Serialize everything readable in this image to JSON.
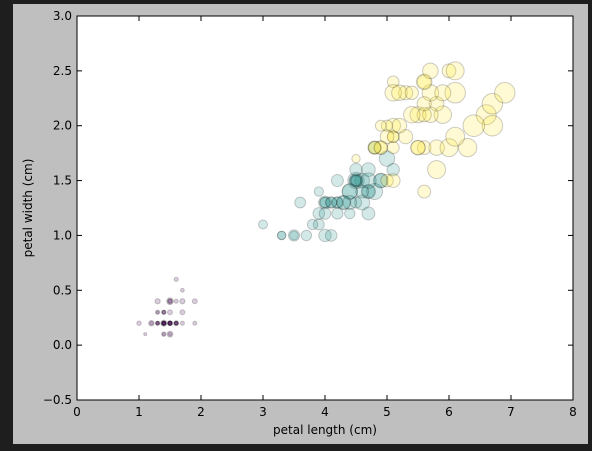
{
  "chart_data": {
    "type": "scatter",
    "title": "",
    "xlabel": "petal length (cm)",
    "ylabel": "petal width (cm)",
    "xlim": [
      0,
      8
    ],
    "ylim": [
      -0.5,
      3.0
    ],
    "x_ticks": [
      "0",
      "1",
      "2",
      "3",
      "4",
      "5",
      "6",
      "7",
      "8"
    ],
    "y_ticks": [
      "−0.5",
      "0.0",
      "0.5",
      "1.0",
      "1.5",
      "2.0",
      "2.5",
      "3.0"
    ],
    "grid": false,
    "legend": "none",
    "marker_alpha": 0.2,
    "colors": {
      "setosa": "#440154",
      "versicolor": "#21918c",
      "virginica": "#fde725",
      "edge": "#000000",
      "axes_bg": "#ffffff",
      "figure_bg": "#bfbfbf"
    },
    "size_encoding": "sepal width (cm)",
    "series": [
      {
        "color": "#440154",
        "x": [
          1.4,
          1.4,
          1.3,
          1.5,
          1.4,
          1.7,
          1.4,
          1.5,
          1.4,
          1.5,
          1.5,
          1.6,
          1.4,
          1.1,
          1.2,
          1.5,
          1.3,
          1.4,
          1.7,
          1.5,
          1.7,
          1.5,
          1.0,
          1.7,
          1.9,
          1.6,
          1.6,
          1.5,
          1.4,
          1.6,
          1.6,
          1.5,
          1.5,
          1.4,
          1.5,
          1.2,
          1.3,
          1.4,
          1.3,
          1.5,
          1.3,
          1.3,
          1.3,
          1.6,
          1.9,
          1.4,
          1.6,
          1.4,
          1.5,
          1.4
        ],
        "y": [
          0.2,
          0.2,
          0.2,
          0.2,
          0.2,
          0.4,
          0.3,
          0.2,
          0.2,
          0.1,
          0.2,
          0.2,
          0.1,
          0.1,
          0.2,
          0.4,
          0.4,
          0.3,
          0.3,
          0.3,
          0.2,
          0.4,
          0.2,
          0.5,
          0.2,
          0.2,
          0.4,
          0.2,
          0.2,
          0.2,
          0.2,
          0.4,
          0.1,
          0.2,
          0.2,
          0.2,
          0.2,
          0.1,
          0.2,
          0.2,
          0.3,
          0.3,
          0.2,
          0.6,
          0.4,
          0.3,
          0.2,
          0.2,
          0.2,
          0.2
        ],
        "size": [
          3.5,
          3.0,
          3.2,
          3.1,
          3.6,
          3.9,
          3.4,
          3.4,
          2.9,
          3.1,
          3.7,
          3.4,
          3.0,
          3.0,
          4.0,
          4.4,
          3.9,
          3.5,
          3.8,
          3.8,
          3.4,
          3.7,
          3.6,
          3.3,
          3.4,
          3.0,
          3.4,
          3.5,
          3.4,
          3.2,
          3.1,
          3.4,
          4.1,
          4.2,
          3.1,
          3.2,
          3.5,
          3.6,
          3.0,
          3.4,
          3.5,
          2.3,
          3.2,
          3.5,
          3.8,
          3.0,
          3.8,
          3.2,
          3.7,
          3.3
        ]
      },
      {
        "color": "#21918c",
        "x": [
          4.7,
          4.5,
          4.9,
          4.0,
          4.6,
          4.5,
          4.7,
          3.3,
          4.6,
          3.9,
          3.5,
          4.2,
          4.0,
          4.7,
          3.6,
          4.4,
          4.5,
          4.1,
          4.5,
          3.9,
          4.8,
          4.0,
          4.9,
          4.7,
          4.3,
          4.4,
          4.8,
          5.0,
          4.5,
          3.5,
          3.8,
          3.7,
          3.9,
          5.1,
          4.5,
          4.5,
          4.7,
          4.4,
          4.1,
          4.0,
          4.4,
          4.6,
          4.0,
          3.3,
          4.2,
          4.2,
          4.2,
          4.3,
          3.0,
          4.1
        ],
        "y": [
          1.4,
          1.5,
          1.5,
          1.3,
          1.5,
          1.3,
          1.6,
          1.0,
          1.3,
          1.4,
          1.0,
          1.5,
          1.0,
          1.4,
          1.3,
          1.4,
          1.5,
          1.0,
          1.5,
          1.1,
          1.8,
          1.3,
          1.5,
          1.2,
          1.3,
          1.4,
          1.4,
          1.7,
          1.5,
          1.0,
          1.1,
          1.0,
          1.2,
          1.6,
          1.5,
          1.6,
          1.5,
          1.3,
          1.3,
          1.3,
          1.2,
          1.4,
          1.2,
          1.0,
          1.3,
          1.2,
          1.3,
          1.3,
          1.1,
          1.3
        ],
        "size": [
          6.4,
          6.9,
          6.5,
          5.5,
          6.5,
          5.7,
          6.3,
          4.9,
          6.6,
          5.2,
          5.0,
          5.9,
          6.0,
          6.1,
          5.6,
          6.7,
          5.6,
          5.8,
          6.2,
          5.6,
          5.9,
          6.1,
          6.3,
          6.1,
          6.4,
          6.6,
          6.8,
          6.7,
          6.0,
          5.7,
          5.5,
          5.5,
          5.8,
          6.0,
          5.4,
          6.0,
          6.7,
          6.3,
          5.6,
          5.5,
          5.5,
          6.1,
          5.8,
          5.0,
          5.6,
          5.7,
          5.7,
          6.2,
          5.1,
          5.7
        ]
      },
      {
        "color": "#fde725",
        "x": [
          6.0,
          5.1,
          5.9,
          5.6,
          5.8,
          6.6,
          4.5,
          6.3,
          5.8,
          6.1,
          5.1,
          5.3,
          5.5,
          5.0,
          5.1,
          5.3,
          5.5,
          6.7,
          6.9,
          5.0,
          5.7,
          4.9,
          6.7,
          4.9,
          5.7,
          6.0,
          4.8,
          4.9,
          5.6,
          5.8,
          6.1,
          6.4,
          5.6,
          5.1,
          5.6,
          6.1,
          5.6,
          5.5,
          4.8,
          5.4,
          5.6,
          5.1,
          5.1,
          5.9,
          5.7,
          5.2,
          5.0,
          5.2,
          5.4,
          5.1
        ],
        "y": [
          2.5,
          1.9,
          2.1,
          1.8,
          2.2,
          2.1,
          1.7,
          1.8,
          1.8,
          2.5,
          2.0,
          1.9,
          2.1,
          2.0,
          2.4,
          2.3,
          1.8,
          2.2,
          2.3,
          1.5,
          2.3,
          2.0,
          2.0,
          1.8,
          2.1,
          1.8,
          1.8,
          1.8,
          2.1,
          1.6,
          1.9,
          2.0,
          2.2,
          1.5,
          1.4,
          2.3,
          2.4,
          1.8,
          1.8,
          2.1,
          2.4,
          2.3,
          1.9,
          2.3,
          2.5,
          2.3,
          1.9,
          2.0,
          2.3,
          1.8
        ],
        "size": [
          6.3,
          5.8,
          7.1,
          6.3,
          6.5,
          7.6,
          4.9,
          7.3,
          6.7,
          7.2,
          6.5,
          6.4,
          6.8,
          5.7,
          5.8,
          6.4,
          6.5,
          7.7,
          7.7,
          6.0,
          6.9,
          5.6,
          7.7,
          6.3,
          6.7,
          7.2,
          6.2,
          6.1,
          6.4,
          7.2,
          7.4,
          7.9,
          6.4,
          6.3,
          6.1,
          7.7,
          6.3,
          6.4,
          6.0,
          6.9,
          6.7,
          6.9,
          5.8,
          6.8,
          6.7,
          6.7,
          6.3,
          6.5,
          6.2,
          5.9
        ]
      }
    ]
  }
}
